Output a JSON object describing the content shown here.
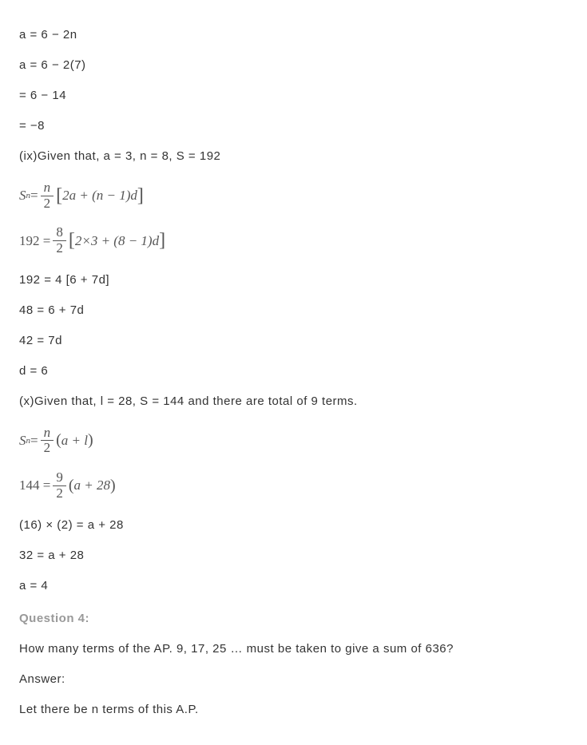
{
  "lines": {
    "l1": "a = 6 − 2n",
    "l2": "a = 6 − 2(7)",
    "l3": "= 6 − 14",
    "l4": "= −8",
    "l5": "(ix)Given that, a = 3, n = 8, S = 192",
    "l6": "192 = 4 [6 + 7d]",
    "l7": "48 = 6 + 7d",
    "l8": "42 = 7d",
    "l9": "d = 6",
    "l10": "(x)Given that, l = 28, S = 144 and there are total of 9 terms.",
    "l11": "(16) × (2) = a + 28",
    "l12": "32 = a + 28",
    "l13": "a = 4",
    "question_label": "Question 4:",
    "question_text": "How many terms of the AP. 9, 17, 25 … must be taken to give a sum of 636?",
    "answer_label": "Answer:",
    "answer_text": "Let there be n terms of this A.P."
  },
  "formulas": {
    "f1": {
      "lhs_sym": "S",
      "lhs_sub": "n",
      "eq": " = ",
      "frac_num": "n",
      "frac_den": "2",
      "bracket_open": "[",
      "expr": "2a + (n − 1)d",
      "bracket_close": "]"
    },
    "f2": {
      "lhs": "192 = ",
      "frac_num": "8",
      "frac_den": "2",
      "bracket_open": "[",
      "expr": "2×3 + (8 − 1)d",
      "bracket_close": "]"
    },
    "f3": {
      "lhs_sym": "S",
      "lhs_sub": "n",
      "eq": " = ",
      "frac_num": "n",
      "frac_den": "2",
      "paren_open": "(",
      "expr": "a + l",
      "paren_close": ")"
    },
    "f4": {
      "lhs": "144 = ",
      "frac_num": "9",
      "frac_den": "2",
      "paren_open": "(",
      "expr": "a + 28",
      "paren_close": ")"
    }
  },
  "styles": {
    "text_color": "#333333",
    "formula_color": "#555555",
    "heading_color": "#999999",
    "body_fontsize": 15,
    "formula_fontsize": 17,
    "background_color": "#ffffff"
  }
}
